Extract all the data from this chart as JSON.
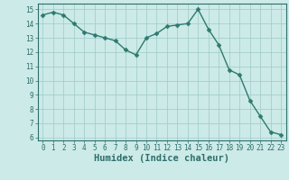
{
  "xlabel": "Humidex (Indice chaleur)",
  "ylabel": "",
  "x_values": [
    0,
    1,
    2,
    3,
    4,
    5,
    6,
    7,
    8,
    9,
    10,
    11,
    12,
    13,
    14,
    15,
    16,
    17,
    18,
    19,
    20,
    21,
    22,
    23
  ],
  "y_values": [
    14.6,
    14.8,
    14.6,
    14.0,
    13.4,
    13.2,
    13.0,
    12.8,
    12.15,
    11.8,
    13.0,
    13.3,
    13.8,
    13.9,
    14.0,
    15.0,
    13.6,
    12.5,
    10.75,
    10.4,
    8.6,
    7.5,
    6.4,
    6.2
  ],
  "line_color": "#2d7a6e",
  "marker": "D",
  "marker_size": 2.5,
  "bg_color": "#cceae8",
  "grid_color": "#9dcac7",
  "axis_color": "#2d6e6a",
  "ylim": [
    5.8,
    15.4
  ],
  "xlim": [
    -0.5,
    23.5
  ],
  "yticks": [
    6,
    7,
    8,
    9,
    10,
    11,
    12,
    13,
    14,
    15
  ],
  "xticks": [
    0,
    1,
    2,
    3,
    4,
    5,
    6,
    7,
    8,
    9,
    10,
    11,
    12,
    13,
    14,
    15,
    16,
    17,
    18,
    19,
    20,
    21,
    22,
    23
  ],
  "tick_fontsize": 5.5,
  "xlabel_fontsize": 7.5
}
